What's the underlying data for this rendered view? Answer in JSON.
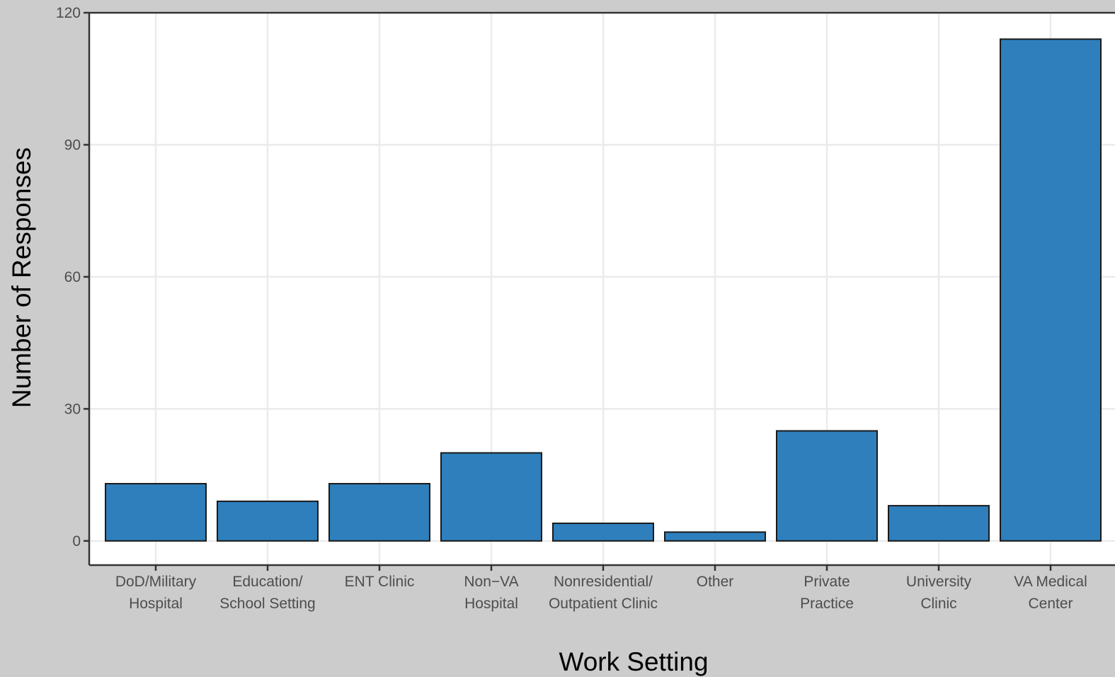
{
  "chart_data": {
    "type": "bar",
    "categories": [
      [
        "DoD/Military",
        "Hospital"
      ],
      [
        "Education/",
        "School Setting"
      ],
      [
        "ENT Clinic"
      ],
      [
        "Non−VA",
        "Hospital"
      ],
      [
        "Nonresidential/",
        "Outpatient Clinic"
      ],
      [
        "Other"
      ],
      [
        "Private",
        "Practice"
      ],
      [
        "University",
        "Clinic"
      ],
      [
        "VA Medical",
        "Center"
      ]
    ],
    "values": [
      13,
      9,
      13,
      20,
      4,
      2,
      25,
      8,
      114
    ],
    "title": "",
    "xlabel": "Work Setting",
    "ylabel": "Number of Responses",
    "ylim": [
      -5.5,
      120
    ],
    "yticks": [
      0,
      30,
      60,
      90,
      120
    ],
    "grid": true,
    "colors": {
      "bar_fill": "#2e7fbc",
      "bar_stroke": "#1a1a1a",
      "panel_background": "#ffffff",
      "plot_background": "#cccccc",
      "grid": "#ebebeb"
    }
  }
}
